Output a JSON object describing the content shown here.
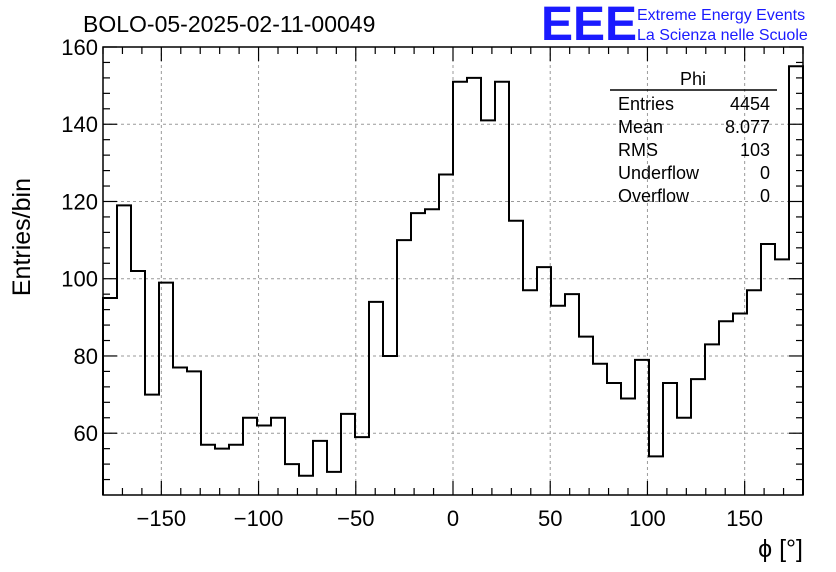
{
  "chart_data": {
    "type": "histogram",
    "title": "BOLO-05-2025-02-11-00049",
    "xlabel": "ϕ [°]",
    "ylabel": "Entries/bin",
    "xlim": [
      -180,
      180
    ],
    "ylim": [
      44,
      160
    ],
    "bin_width": 7.2,
    "grid": true,
    "x_ticks": [
      -150,
      -100,
      -50,
      0,
      50,
      100,
      150
    ],
    "x_tick_labels": [
      "−150",
      "−100",
      "−50",
      "0",
      "50",
      "100",
      "150"
    ],
    "y_ticks": [
      60,
      80,
      100,
      120,
      140,
      160
    ],
    "y_tick_labels": [
      "60",
      "80",
      "100",
      "120",
      "140",
      "160"
    ],
    "values": [
      95,
      119,
      102,
      70,
      99,
      77,
      76,
      57,
      56,
      57,
      64,
      62,
      64,
      52,
      49,
      58,
      50,
      65,
      59,
      94,
      80,
      110,
      117,
      118,
      127,
      151,
      152,
      141,
      151,
      115,
      97,
      103,
      93,
      96,
      85,
      78,
      73,
      69,
      79,
      54,
      73,
      64,
      74,
      83,
      89,
      91,
      97,
      109,
      105,
      155
    ],
    "stats_box": {
      "name": "Phi",
      "rows": [
        {
          "label": "Entries",
          "value": "4454"
        },
        {
          "label": "Mean",
          "value": "8.077"
        },
        {
          "label": "RMS",
          "value": "103"
        },
        {
          "label": "Underflow",
          "value": "0"
        },
        {
          "label": "Overflow",
          "value": "0"
        }
      ]
    }
  },
  "logo": {
    "mark": "EEE",
    "line1": "Extreme Energy Events",
    "line2": "La Scienza nelle Scuole",
    "color": "#1a1aff"
  }
}
